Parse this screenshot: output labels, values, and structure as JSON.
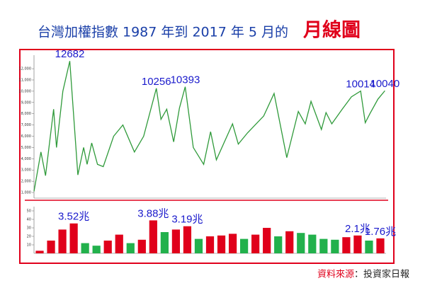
{
  "title": "台灣加權指數 1987 年到 2017 年 5 月的",
  "title_emphasis": "月線圖",
  "source_label": "資料來源",
  "source_text": "：投資家日報",
  "chart_data": [
    {
      "type": "line",
      "color": "#2f9a3a",
      "x": [
        1987.0,
        1987.6,
        1988.0,
        1988.7,
        1988.95,
        1989.5,
        1990.1,
        1990.8,
        1991.3,
        1991.6,
        1992.0,
        1992.5,
        1993.0,
        1993.9,
        1994.7,
        1995.7,
        1996.5,
        1997.6,
        1998.0,
        1998.5,
        1999.1,
        1999.6,
        2000.1,
        2000.8,
        2001.7,
        2002.3,
        2002.8,
        2004.2,
        2004.7,
        2005.5,
        2006.9,
        2007.8,
        2008.9,
        2009.9,
        2010.5,
        2011.0,
        2011.9,
        2012.3,
        2012.8,
        2013.7,
        2014.5,
        2015.3,
        2015.7,
        2016.1,
        2016.8,
        2017.4
      ],
      "values": [
        1100,
        4600,
        2500,
        8400,
        5000,
        10000,
        12682,
        2560,
        5000,
        3500,
        5400,
        3500,
        3300,
        6000,
        7000,
        4600,
        6000,
        10256,
        7500,
        8400,
        5500,
        8500,
        10393,
        5000,
        3500,
        6400,
        3900,
        7100,
        5300,
        6300,
        7800,
        9800,
        4100,
        8200,
        7100,
        9100,
        6600,
        8100,
        7100,
        8400,
        9500,
        10014,
        7200,
        8000,
        9300,
        10040
      ],
      "xlim": [
        1987,
        2017.5
      ],
      "ylim": [
        500,
        13200
      ],
      "yticks": [
        {
          "value": 1000,
          "label": "1,000"
        },
        {
          "value": 2000,
          "label": "2,000"
        },
        {
          "value": 3000,
          "label": "3,000"
        },
        {
          "value": 4000,
          "label": "4,000"
        },
        {
          "value": 5000,
          "label": "5,000"
        },
        {
          "value": 6000,
          "label": "6,000"
        },
        {
          "value": 7000,
          "label": "7,000"
        },
        {
          "value": 8000,
          "label": "8,000"
        },
        {
          "value": 9000,
          "label": "9,000"
        },
        {
          "value": 10000,
          "label": "10,000"
        },
        {
          "value": 11000,
          "label": "11,000"
        },
        {
          "value": 12000,
          "label": "12,000"
        }
      ],
      "annotations": [
        {
          "text": "12682",
          "x": 1990.1,
          "y": 12682
        },
        {
          "text": "10256",
          "x": 1997.6,
          "y": 10256
        },
        {
          "text": "10393",
          "x": 2000.1,
          "y": 10393
        },
        {
          "text": "10014",
          "x": 2015.3,
          "y": 10014
        },
        {
          "text": "10040",
          "x": 2017.4,
          "y": 10040
        }
      ]
    },
    {
      "type": "bar",
      "up_color": "#e0001b",
      "down_color": "#22b14c",
      "x": [
        1987,
        1988,
        1989,
        1990,
        1991,
        1992,
        1993,
        1994,
        1995,
        1996,
        1997,
        1998,
        1999,
        2000,
        2001,
        2002,
        2003,
        2004,
        2005,
        2006,
        2007,
        2008,
        2009,
        2010,
        2011,
        2012,
        2013,
        2014,
        2015,
        2016,
        2017
      ],
      "values": [
        3,
        15,
        28,
        35.2,
        12,
        9,
        15,
        22,
        12,
        16,
        38.8,
        25,
        28,
        31.9,
        17,
        20,
        21,
        23,
        17,
        22,
        30,
        20,
        26,
        24,
        22,
        17,
        16,
        19,
        21,
        15,
        17.6
      ],
      "xlim": [
        1986.5,
        2017.5
      ],
      "ylim": [
        0,
        55
      ],
      "yticks": [
        10,
        20,
        30,
        40,
        50
      ],
      "annotations": [
        {
          "text": "3.52兆",
          "x": 1990,
          "y": 35.2
        },
        {
          "text": "3.88兆",
          "x": 1997,
          "y": 38.8
        },
        {
          "text": "3.19兆",
          "x": 2000,
          "y": 31.9
        },
        {
          "text": "2.1兆",
          "x": 2015,
          "y": 21
        },
        {
          "text": "1.76兆",
          "x": 2017,
          "y": 17.6
        }
      ]
    }
  ]
}
